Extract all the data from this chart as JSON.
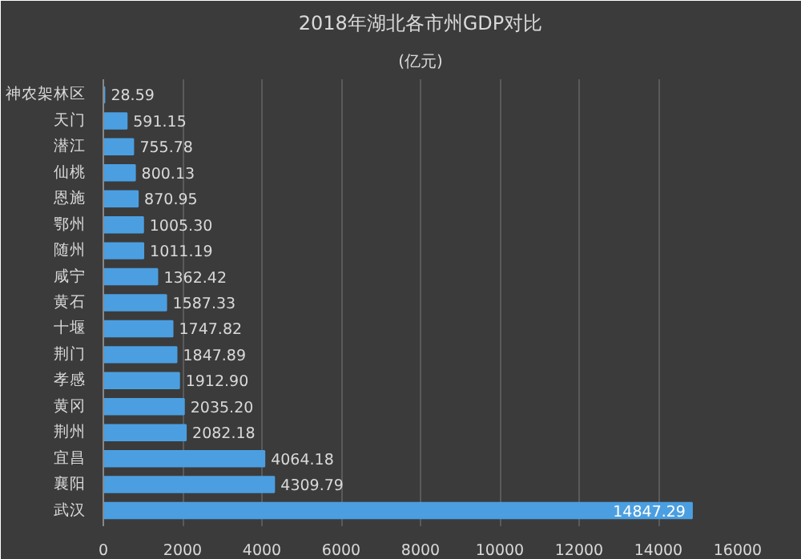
{
  "chart_data": {
    "type": "bar",
    "orientation": "horizontal",
    "title": "2018年湖北各市州GDP对比",
    "subtitle": "(亿元)",
    "categories": [
      "神农架林区",
      "天门",
      "潜江",
      "仙桃",
      "恩施",
      "鄂州",
      "随州",
      "咸宁",
      "黄石",
      "十堰",
      "荆门",
      "孝感",
      "黄冈",
      "荆州",
      "宜昌",
      "襄阳",
      "武汉"
    ],
    "values": [
      28.59,
      591.15,
      755.78,
      800.13,
      870.95,
      1005.3,
      1011.19,
      1362.42,
      1587.33,
      1747.82,
      1847.89,
      1912.9,
      2035.2,
      2082.18,
      4064.18,
      4309.79,
      14847.29
    ],
    "value_labels": [
      "28.59",
      "591.15",
      "755.78",
      "800.13",
      "870.95",
      "1005.30",
      "1011.19",
      "1362.42",
      "1587.33",
      "1747.82",
      "1847.89",
      "1912.90",
      "2035.20",
      "2082.18",
      "4064.18",
      "4309.79",
      "14847.29"
    ],
    "color": "#4b9fe1",
    "xlim": [
      0,
      16000
    ],
    "xticks": [
      0,
      2000,
      4000,
      6000,
      8000,
      10000,
      12000,
      14000,
      16000
    ],
    "grid": "x"
  }
}
